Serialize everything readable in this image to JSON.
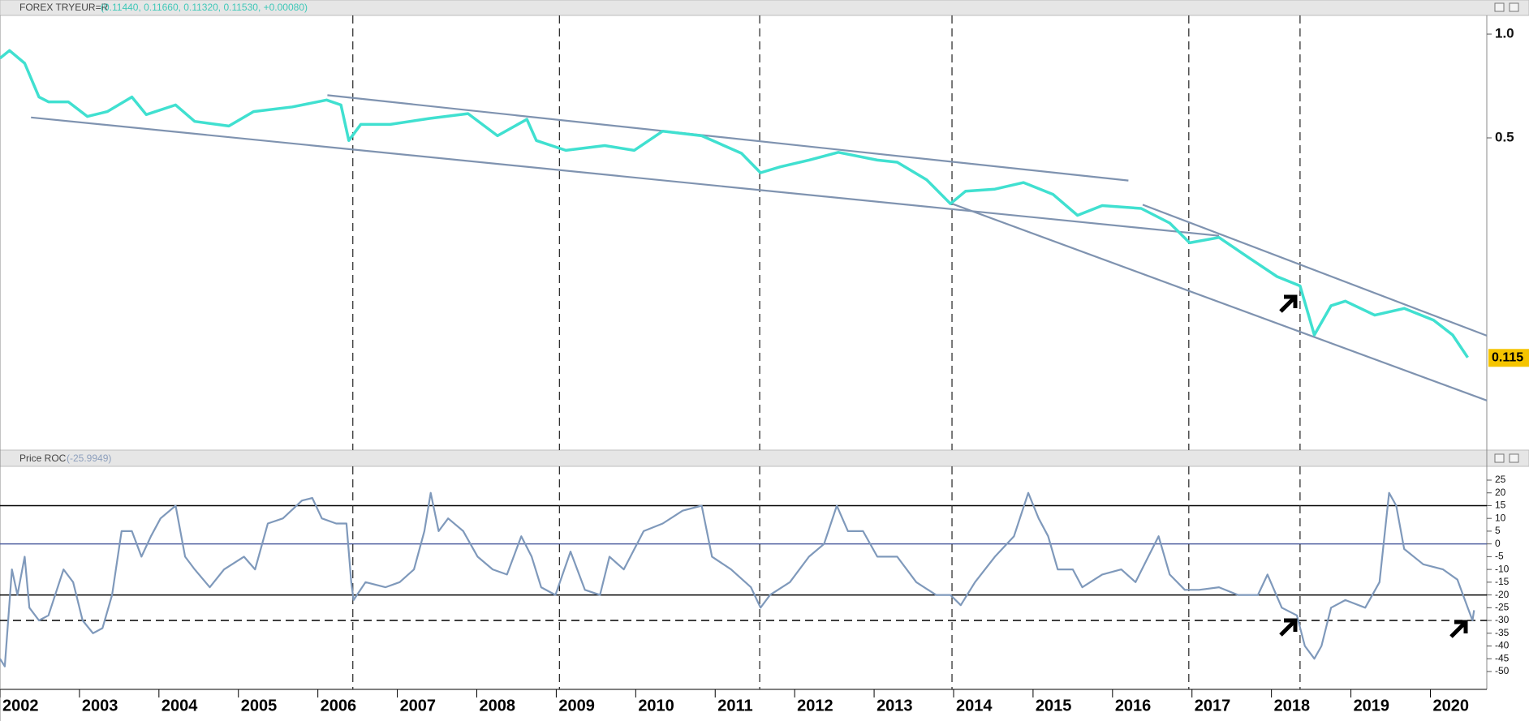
{
  "chart_data": [
    {
      "type": "line",
      "title": "FOREX TRYEUR=R",
      "subtitle": "(0.11440, 0.11660, 0.11320, 0.11530, +0.00080)",
      "log_scale": true,
      "color": "#40e0d0",
      "x": [
        2002.0,
        2002.12,
        2002.31,
        2002.49,
        2002.61,
        2002.86,
        2003.1,
        2003.35,
        2003.66,
        2003.84,
        2004.21,
        2004.45,
        2004.88,
        2005.19,
        2005.68,
        2006.11,
        2006.29,
        2006.39,
        2006.54,
        2006.91,
        2007.4,
        2007.89,
        2008.26,
        2008.63,
        2008.75,
        2009.12,
        2009.61,
        2009.98,
        2010.34,
        2010.83,
        2011.33,
        2011.57,
        2011.82,
        2012.18,
        2012.55,
        2013.04,
        2013.29,
        2013.66,
        2013.96,
        2014.15,
        2014.52,
        2014.88,
        2015.25,
        2015.56,
        2015.87,
        2016.36,
        2016.72,
        2016.97,
        2017.34,
        2017.71,
        2018.07,
        2018.36,
        2018.54,
        2018.75,
        2018.93,
        2019.3,
        2019.67,
        2020.04,
        2020.28,
        2020.47
      ],
      "values": [
        0.851,
        0.896,
        0.823,
        0.657,
        0.636,
        0.636,
        0.577,
        0.596,
        0.657,
        0.584,
        0.623,
        0.558,
        0.541,
        0.596,
        0.615,
        0.644,
        0.623,
        0.491,
        0.547,
        0.547,
        0.569,
        0.588,
        0.507,
        0.566,
        0.491,
        0.46,
        0.475,
        0.46,
        0.523,
        0.507,
        0.451,
        0.396,
        0.412,
        0.431,
        0.454,
        0.431,
        0.425,
        0.378,
        0.322,
        0.35,
        0.355,
        0.371,
        0.343,
        0.298,
        0.318,
        0.312,
        0.283,
        0.248,
        0.257,
        0.225,
        0.198,
        0.186,
        0.134,
        0.163,
        0.168,
        0.153,
        0.16,
        0.148,
        0.134,
        0.1153
      ],
      "xlim": [
        2002,
        2020.71
      ],
      "ylim": [
        0.0621,
        1.133
      ],
      "yticks": [
        {
          "value": 1,
          "label": "1.0"
        },
        0.5
      ],
      "last_label": 0.115,
      "trendlines": [
        {
          "color": "#7f93b0",
          "x": [
            2006.12,
            2016.2
          ],
          "values": [
            0.665,
            0.376
          ]
        },
        {
          "color": "#7f93b0",
          "x": [
            2002.39,
            2017.34
          ],
          "values": [
            0.573,
            0.26
          ]
        },
        {
          "color": "#7f93b0",
          "x": [
            2013.98,
            2020.71
          ],
          "values": [
            0.322,
            0.0865
          ]
        },
        {
          "color": "#7f93b0",
          "x": [
            2016.38,
            2020.71
          ],
          "values": [
            0.32,
            0.1334
          ]
        }
      ],
      "vlines": [
        2006.44,
        2009.04,
        2011.56,
        2013.98,
        2016.96,
        2018.36
      ]
    },
    {
      "type": "line",
      "title": "Price ROC",
      "subtitle": "(-25.9949)",
      "color": "#7f99bb",
      "x": [
        2002.0,
        2002.06,
        2002.15,
        2002.22,
        2002.31,
        2002.37,
        2002.49,
        2002.61,
        2002.8,
        2002.92,
        2003.04,
        2003.17,
        2003.29,
        2003.41,
        2003.53,
        2003.66,
        2003.78,
        2003.9,
        2004.02,
        2004.21,
        2004.33,
        2004.45,
        2004.64,
        2004.82,
        2005.07,
        2005.21,
        2005.37,
        2005.56,
        2005.8,
        2005.93,
        2006.05,
        2006.23,
        2006.36,
        2006.42,
        2006.45,
        2006.6,
        2006.85,
        2007.03,
        2007.21,
        2007.34,
        2007.42,
        2007.52,
        2007.64,
        2007.83,
        2008.01,
        2008.2,
        2008.38,
        2008.56,
        2008.69,
        2008.81,
        2008.99,
        2009.18,
        2009.36,
        2009.55,
        2009.67,
        2009.85,
        2010.1,
        2010.34,
        2010.59,
        2010.83,
        2010.96,
        2011.2,
        2011.45,
        2011.57,
        2011.69,
        2011.94,
        2012.18,
        2012.37,
        2012.53,
        2012.67,
        2012.86,
        2013.04,
        2013.29,
        2013.53,
        2013.78,
        2013.96,
        2014.09,
        2014.27,
        2014.52,
        2014.76,
        2014.94,
        2015.07,
        2015.19,
        2015.31,
        2015.5,
        2015.62,
        2015.87,
        2016.11,
        2016.29,
        2016.45,
        2016.58,
        2016.72,
        2016.91,
        2017.09,
        2017.34,
        2017.58,
        2017.83,
        2017.95,
        2018.13,
        2018.32,
        2018.42,
        2018.54,
        2018.63,
        2018.75,
        2018.93,
        2019.18,
        2019.36,
        2019.48,
        2019.57,
        2019.67,
        2019.91,
        2020.16,
        2020.34,
        2020.47,
        2020.53,
        2020.55
      ],
      "values": [
        -45,
        -48,
        -10,
        -20,
        -5,
        -25,
        -30,
        -28,
        -10,
        -15,
        -30,
        -35,
        -33,
        -20,
        5,
        5,
        -5,
        3,
        10,
        15,
        -5,
        -10,
        -17,
        -10,
        -5,
        -10,
        8,
        10,
        17,
        18,
        10,
        8,
        8,
        -15,
        -22,
        -15,
        -17,
        -15,
        -10,
        5,
        20,
        5,
        10,
        5,
        -5,
        -10,
        -12,
        3,
        -5,
        -17,
        -20,
        -3,
        -18,
        -20,
        -5,
        -10,
        5,
        8,
        13,
        15,
        -5,
        -10,
        -17,
        -25,
        -20,
        -15,
        -5,
        0,
        15,
        5,
        5,
        -5,
        -5,
        -15,
        -20,
        -20,
        -24,
        -15,
        -5,
        3,
        20,
        10,
        3,
        -10,
        -10,
        -17,
        -12,
        -10,
        -15,
        -5,
        3,
        -12,
        -18,
        -18,
        -17,
        -20,
        -20,
        -12,
        -25,
        -28,
        -40,
        -45,
        -40,
        -25,
        -22,
        -25,
        -15,
        20,
        15,
        -2,
        -8,
        -10,
        -14,
        -25,
        -30,
        -25.9949
      ],
      "xlim": [
        2002,
        2020.71
      ],
      "ylim": [
        -57,
        30.4
      ],
      "yticks": [
        25,
        20,
        15,
        10,
        5,
        0,
        -5,
        -10,
        -15,
        -20,
        -25,
        -30,
        -35,
        -40,
        -45,
        -50
      ],
      "xticks": [
        2002,
        2003,
        2004,
        2005,
        2006,
        2007,
        2008,
        2009,
        2010,
        2011,
        2012,
        2013,
        2014,
        2015,
        2016,
        2017,
        2018,
        2019,
        2020
      ],
      "hlines": [
        {
          "value": 15,
          "color": "#000000"
        },
        {
          "value": 0,
          "color": "#5060a0"
        },
        {
          "value": -20,
          "color": "#000000"
        },
        {
          "value": -30,
          "color": "#000000",
          "dashed": true
        }
      ]
    }
  ]
}
